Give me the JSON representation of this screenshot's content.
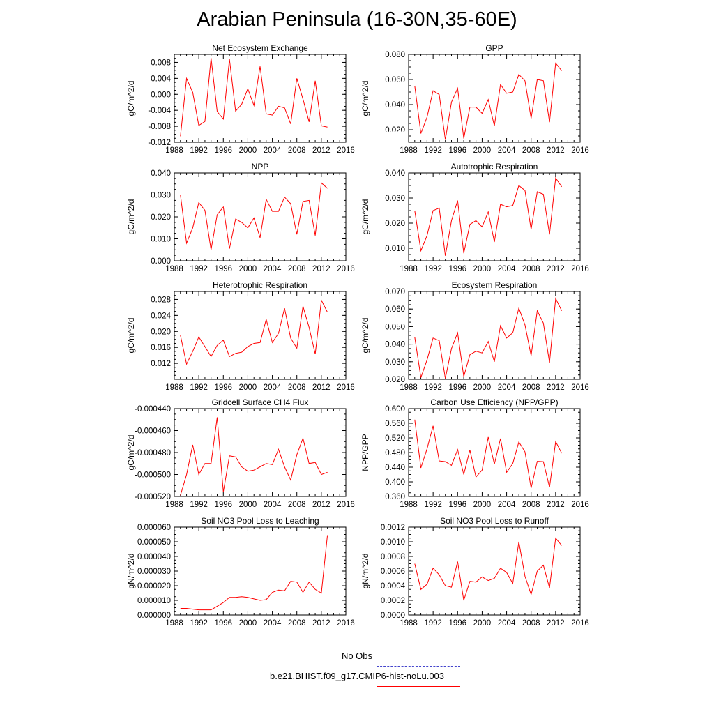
{
  "title": "Arabian Peninsula (16-30N,35-60E)",
  "legend": {
    "obs_label": "No Obs",
    "model_label": "b.e21.BHIST.f09_g17.CMIP6-hist-noLu.003",
    "obs_color": "#4444cc",
    "model_color": "#ff0000"
  },
  "chart_data": [
    {
      "type": "line",
      "title": "Net Ecosystem Exchange",
      "ylabel": "gC/m^2/d",
      "xlim": [
        1988,
        2016
      ],
      "ylim": [
        -0.012,
        0.01
      ],
      "xticks": [
        1988,
        1992,
        1996,
        2000,
        2004,
        2008,
        2012,
        2016
      ],
      "yticks": [
        "-0.012",
        "-0.008",
        "-0.004",
        "0.000",
        "0.004",
        "0.008"
      ],
      "ytick_values": [
        -0.012,
        -0.008,
        -0.004,
        0,
        0.004,
        0.008
      ],
      "x": [
        1989,
        1990,
        1991,
        1992,
        1993,
        1994,
        1995,
        1996,
        1997,
        1998,
        1999,
        2000,
        2001,
        2002,
        2003,
        2004,
        2005,
        2006,
        2007,
        2008,
        2009,
        2010,
        2011,
        2012,
        2013
      ],
      "values": [
        -0.0105,
        0.004,
        0.0005,
        -0.0078,
        -0.0068,
        0.0091,
        -0.0043,
        -0.0062,
        0.0088,
        -0.0042,
        -0.0025,
        0.0014,
        -0.0028,
        0.007,
        -0.0049,
        -0.0052,
        -0.003,
        -0.0034,
        -0.0074,
        0.004,
        -0.0012,
        -0.0069,
        0.0034,
        -0.0079,
        -0.0082
      ]
    },
    {
      "type": "line",
      "title": "GPP",
      "ylabel": "gC/m^2/d",
      "xlim": [
        1988,
        2016
      ],
      "ylim": [
        0.01,
        0.08
      ],
      "xticks": [
        1988,
        1992,
        1996,
        2000,
        2004,
        2008,
        2012,
        2016
      ],
      "yticks": [
        "0.020",
        "0.040",
        "0.060",
        "0.080"
      ],
      "ytick_values": [
        0.02,
        0.04,
        0.06,
        0.08
      ],
      "x": [
        1989,
        1990,
        1991,
        1992,
        1993,
        1994,
        1995,
        1996,
        1997,
        1998,
        1999,
        2000,
        2001,
        2002,
        2003,
        2004,
        2005,
        2006,
        2007,
        2008,
        2009,
        2010,
        2011,
        2012,
        2013
      ],
      "values": [
        0.055,
        0.017,
        0.03,
        0.051,
        0.048,
        0.012,
        0.042,
        0.053,
        0.013,
        0.038,
        0.038,
        0.033,
        0.044,
        0.023,
        0.056,
        0.049,
        0.05,
        0.064,
        0.059,
        0.029,
        0.06,
        0.059,
        0.026,
        0.073,
        0.067
      ]
    },
    {
      "type": "line",
      "title": "NPP",
      "ylabel": "gC/m^2/d",
      "xlim": [
        1988,
        2016
      ],
      "ylim": [
        0,
        0.04
      ],
      "xticks": [
        1988,
        1992,
        1996,
        2000,
        2004,
        2008,
        2012,
        2016
      ],
      "yticks": [
        "0.000",
        "0.010",
        "0.020",
        "0.030",
        "0.040"
      ],
      "ytick_values": [
        0,
        0.01,
        0.02,
        0.03,
        0.04
      ],
      "x": [
        1989,
        1990,
        1991,
        1992,
        1993,
        1994,
        1995,
        1996,
        1997,
        1998,
        1999,
        2000,
        2001,
        2002,
        2003,
        2004,
        2005,
        2006,
        2007,
        2008,
        2009,
        2010,
        2011,
        2012,
        2013
      ],
      "values": [
        0.03,
        0.008,
        0.015,
        0.0265,
        0.023,
        0.005,
        0.021,
        0.0245,
        0.0055,
        0.019,
        0.0175,
        0.015,
        0.0195,
        0.0105,
        0.028,
        0.0225,
        0.0225,
        0.029,
        0.026,
        0.012,
        0.027,
        0.0275,
        0.0115,
        0.0355,
        0.033
      ]
    },
    {
      "type": "line",
      "title": "Autotrophic Respiration",
      "ylabel": "gC/m^2/d",
      "xlim": [
        1988,
        2016
      ],
      "ylim": [
        0.005,
        0.04
      ],
      "xticks": [
        1988,
        1992,
        1996,
        2000,
        2004,
        2008,
        2012,
        2016
      ],
      "yticks": [
        "0.010",
        "0.020",
        "0.030",
        "0.040"
      ],
      "ytick_values": [
        0.01,
        0.02,
        0.03,
        0.04
      ],
      "x": [
        1989,
        1990,
        1991,
        1992,
        1993,
        1994,
        1995,
        1996,
        1997,
        1998,
        1999,
        2000,
        2001,
        2002,
        2003,
        2004,
        2005,
        2006,
        2007,
        2008,
        2009,
        2010,
        2011,
        2012,
        2013
      ],
      "values": [
        0.025,
        0.009,
        0.015,
        0.025,
        0.026,
        0.007,
        0.021,
        0.029,
        0.008,
        0.0195,
        0.021,
        0.0185,
        0.0245,
        0.0125,
        0.0275,
        0.0265,
        0.027,
        0.035,
        0.033,
        0.0175,
        0.0325,
        0.0315,
        0.0155,
        0.038,
        0.0345
      ]
    },
    {
      "type": "line",
      "title": "Heterotrophic Respiration",
      "ylabel": "gC/m^2/d",
      "xlim": [
        1988,
        2016
      ],
      "ylim": [
        0.008,
        0.03
      ],
      "xticks": [
        1988,
        1992,
        1996,
        2000,
        2004,
        2008,
        2012,
        2016
      ],
      "yticks": [
        "0.012",
        "0.016",
        "0.020",
        "0.024",
        "0.028"
      ],
      "ytick_values": [
        0.012,
        0.016,
        0.02,
        0.024,
        0.028
      ],
      "x": [
        1989,
        1990,
        1991,
        1992,
        1993,
        1994,
        1995,
        1996,
        1997,
        1998,
        1999,
        2000,
        2001,
        2002,
        2003,
        2004,
        2005,
        2006,
        2007,
        2008,
        2009,
        2010,
        2011,
        2012,
        2013
      ],
      "values": [
        0.019,
        0.0118,
        0.015,
        0.0186,
        0.0162,
        0.0137,
        0.0165,
        0.0178,
        0.0137,
        0.0145,
        0.0148,
        0.0162,
        0.017,
        0.0172,
        0.023,
        0.0172,
        0.0195,
        0.0258,
        0.0183,
        0.0158,
        0.0263,
        0.021,
        0.0143,
        0.0278,
        0.0248
      ]
    },
    {
      "type": "line",
      "title": "Ecosystem Respiration",
      "ylabel": "gC/m^2/d",
      "xlim": [
        1988,
        2016
      ],
      "ylim": [
        0.02,
        0.07
      ],
      "xticks": [
        1988,
        1992,
        1996,
        2000,
        2004,
        2008,
        2012,
        2016
      ],
      "yticks": [
        "0.020",
        "0.030",
        "0.040",
        "0.050",
        "0.060",
        "0.070"
      ],
      "ytick_values": [
        0.02,
        0.03,
        0.04,
        0.05,
        0.06,
        0.07
      ],
      "x": [
        1989,
        1990,
        1991,
        1992,
        1993,
        1994,
        1995,
        1996,
        1997,
        1998,
        1999,
        2000,
        2001,
        2002,
        2003,
        2004,
        2005,
        2006,
        2007,
        2008,
        2009,
        2010,
        2011,
        2012,
        2013
      ],
      "values": [
        0.044,
        0.021,
        0.031,
        0.0435,
        0.042,
        0.0205,
        0.0375,
        0.0465,
        0.0215,
        0.034,
        0.036,
        0.035,
        0.0415,
        0.03,
        0.0505,
        0.0435,
        0.0465,
        0.0605,
        0.051,
        0.0335,
        0.059,
        0.052,
        0.0295,
        0.066,
        0.059
      ]
    },
    {
      "type": "line",
      "title": "Gridcell Surface CH4 Flux",
      "ylabel": "gC/m^2/d",
      "xlim": [
        1988,
        2016
      ],
      "ylim": [
        -0.00052,
        -0.00044
      ],
      "xticks": [
        1988,
        1992,
        1996,
        2000,
        2004,
        2008,
        2012,
        2016
      ],
      "yticks": [
        "-0.000520",
        "-0.000500",
        "-0.000480",
        "-0.000460",
        "-0.000440"
      ],
      "ytick_values": [
        -0.00052,
        -0.0005,
        -0.00048,
        -0.00046,
        -0.00044
      ],
      "x": [
        1989,
        1990,
        1991,
        1992,
        1993,
        1994,
        1995,
        1996,
        1997,
        1998,
        1999,
        2000,
        2001,
        2002,
        2003,
        2004,
        2005,
        2006,
        2007,
        2008,
        2009,
        2010,
        2011,
        2012,
        2013
      ],
      "values": [
        -0.000519,
        -0.0005,
        -0.000473,
        -0.0005,
        -0.00049,
        -0.00049,
        -0.000448,
        -0.000516,
        -0.000483,
        -0.000484,
        -0.000493,
        -0.000497,
        -0.000496,
        -0.000493,
        -0.00049,
        -0.000491,
        -0.000477,
        -0.000493,
        -0.000505,
        -0.000482,
        -0.000467,
        -0.00049,
        -0.000489,
        -0.0005,
        -0.000498
      ]
    },
    {
      "type": "line",
      "title": "Carbon Use Efficiency (NPP/GPP)",
      "ylabel": "NPP/GPP",
      "xlim": [
        1988,
        2016
      ],
      "ylim": [
        0.36,
        0.6
      ],
      "xticks": [
        1988,
        1992,
        1996,
        2000,
        2004,
        2008,
        2012,
        2016
      ],
      "yticks": [
        "0.360",
        "0.400",
        "0.440",
        "0.480",
        "0.520",
        "0.560",
        "0.600"
      ],
      "ytick_values": [
        0.36,
        0.4,
        0.44,
        0.48,
        0.52,
        0.56,
        0.6
      ],
      "x": [
        1989,
        1990,
        1991,
        1992,
        1993,
        1994,
        1995,
        1996,
        1997,
        1998,
        1999,
        2000,
        2001,
        2002,
        2003,
        2004,
        2005,
        2006,
        2007,
        2008,
        2009,
        2010,
        2011,
        2012,
        2013
      ],
      "values": [
        0.57,
        0.438,
        0.49,
        0.553,
        0.457,
        0.455,
        0.445,
        0.488,
        0.42,
        0.487,
        0.413,
        0.432,
        0.522,
        0.448,
        0.518,
        0.426,
        0.45,
        0.509,
        0.482,
        0.383,
        0.456,
        0.455,
        0.385,
        0.51,
        0.478
      ]
    },
    {
      "type": "line",
      "title": "Soil NO3 Pool Loss to Leaching",
      "ylabel": "gN/m^2/d",
      "xlim": [
        1988,
        2016
      ],
      "ylim": [
        0,
        6e-05
      ],
      "xticks": [
        1988,
        1992,
        1996,
        2000,
        2004,
        2008,
        2012,
        2016
      ],
      "yticks": [
        "0.000000",
        "0.000010",
        "0.000020",
        "0.000030",
        "0.000040",
        "0.000050",
        "0.000060"
      ],
      "ytick_values": [
        0,
        1e-05,
        2e-05,
        3e-05,
        4e-05,
        5e-05,
        6e-05
      ],
      "x": [
        1989,
        1990,
        1991,
        1992,
        1993,
        1994,
        1995,
        1996,
        1997,
        1998,
        1999,
        2000,
        2001,
        2002,
        2003,
        2004,
        2005,
        2006,
        2007,
        2008,
        2009,
        2010,
        2011,
        2012,
        2013
      ],
      "values": [
        4.5e-06,
        4.5e-06,
        4e-06,
        3.5e-06,
        3.5e-06,
        3.5e-06,
        6e-06,
        8.5e-06,
        1.2e-05,
        1.2e-05,
        1.25e-05,
        1.2e-05,
        1.1e-05,
        1e-05,
        1.05e-05,
        1.55e-05,
        1.7e-05,
        1.65e-05,
        2.3e-05,
        2.25e-05,
        1.55e-05,
        2.25e-05,
        1.75e-05,
        1.5e-05,
        5.45e-05
      ]
    },
    {
      "type": "line",
      "title": "Soil NO3 Pool Loss to Runoff",
      "ylabel": "gN/m^2/d",
      "xlim": [
        1988,
        2016
      ],
      "ylim": [
        0,
        0.0012
      ],
      "xticks": [
        1988,
        1992,
        1996,
        2000,
        2004,
        2008,
        2012,
        2016
      ],
      "yticks": [
        "0.0000",
        "0.0002",
        "0.0004",
        "0.0006",
        "0.0008",
        "0.0010",
        "0.0012"
      ],
      "ytick_values": [
        0,
        0.0002,
        0.0004,
        0.0006,
        0.0008,
        0.001,
        0.0012
      ],
      "x": [
        1989,
        1990,
        1991,
        1992,
        1993,
        1994,
        1995,
        1996,
        1997,
        1998,
        1999,
        2000,
        2001,
        2002,
        2003,
        2004,
        2005,
        2006,
        2007,
        2008,
        2009,
        2010,
        2011,
        2012,
        2013
      ],
      "values": [
        0.0007,
        0.00035,
        0.00042,
        0.00064,
        0.00055,
        0.0004,
        0.00038,
        0.00073,
        0.0002,
        0.00046,
        0.00045,
        0.00052,
        0.00047,
        0.0005,
        0.00064,
        0.00058,
        0.00043,
        0.001,
        0.00053,
        0.00028,
        0.0006,
        0.00068,
        0.00037,
        0.00105,
        0.00095
      ]
    }
  ]
}
